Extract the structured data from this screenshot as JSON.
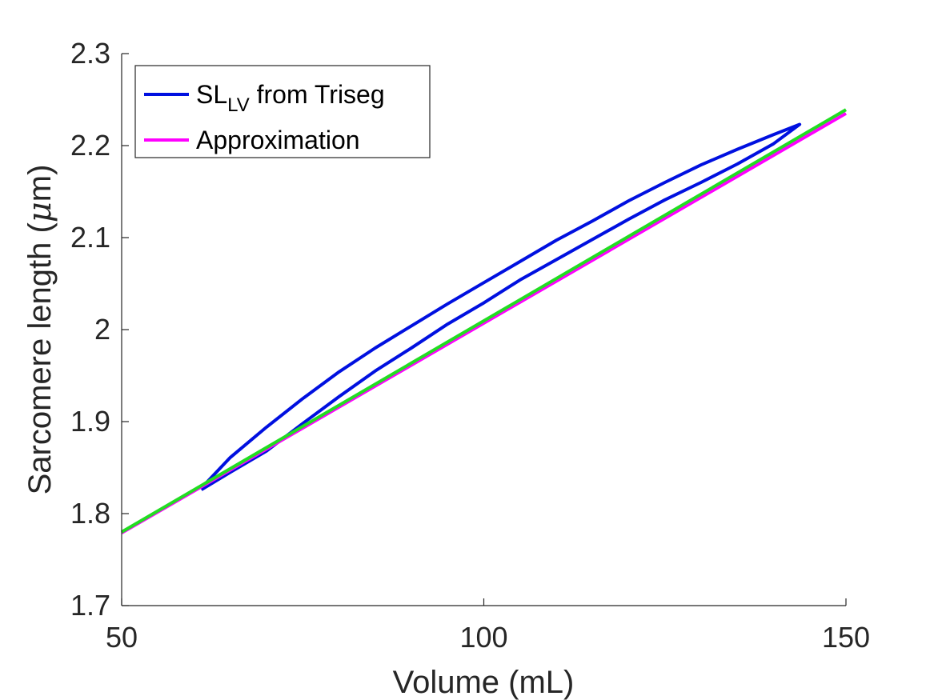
{
  "chart_data": {
    "type": "line",
    "xlabel": "Volume (mL)",
    "ylabel_parts": {
      "prefix": "Sarcomere length (",
      "symbol": "μ",
      "suffix": "m)"
    },
    "xlim": [
      50,
      150
    ],
    "ylim": [
      1.7,
      2.3
    ],
    "xticks": [
      50,
      100,
      150
    ],
    "xtick_labels": [
      "50",
      "100",
      "150"
    ],
    "yticks": [
      1.7,
      1.8,
      1.9,
      2.0,
      2.1,
      2.2,
      2.3
    ],
    "ytick_labels": [
      "1.7",
      "1.8",
      "1.9",
      "2",
      "2.1",
      "2.2",
      "2.3"
    ],
    "grid": false,
    "legend_position": "top-left",
    "legend": [
      {
        "label_main": "SL",
        "label_sub": "LV",
        "label_rest": " from Triseg",
        "color": "#0010e0"
      },
      {
        "label_main": "Approximation",
        "label_sub": "",
        "label_rest": "",
        "color": "#ff00ff"
      }
    ],
    "series": [
      {
        "color": "#0010e0",
        "x": [
          61.0,
          65,
          70,
          75,
          80,
          85,
          90,
          95,
          100,
          105,
          110,
          115,
          120,
          125,
          130,
          135,
          140,
          143.6,
          140,
          135,
          130,
          125,
          120,
          115,
          110,
          105,
          100,
          95,
          90,
          85,
          80,
          75,
          70,
          65,
          61.4
        ],
        "y": [
          1.826,
          1.845,
          1.868,
          1.898,
          1.927,
          1.955,
          1.98,
          2.006,
          2.029,
          2.054,
          2.076,
          2.098,
          2.12,
          2.141,
          2.16,
          2.18,
          2.202,
          2.223,
          2.212,
          2.196,
          2.179,
          2.16,
          2.14,
          2.118,
          2.097,
          2.074,
          2.051,
          2.028,
          2.004,
          1.98,
          1.954,
          1.925,
          1.894,
          1.861,
          1.831
        ]
      },
      {
        "color": "#ff00ff",
        "x": [
          50,
          150
        ],
        "y": [
          1.779,
          2.235
        ]
      },
      {
        "color": "#22dd22",
        "x": [
          50,
          150
        ],
        "y": [
          1.78,
          2.239
        ]
      }
    ]
  }
}
